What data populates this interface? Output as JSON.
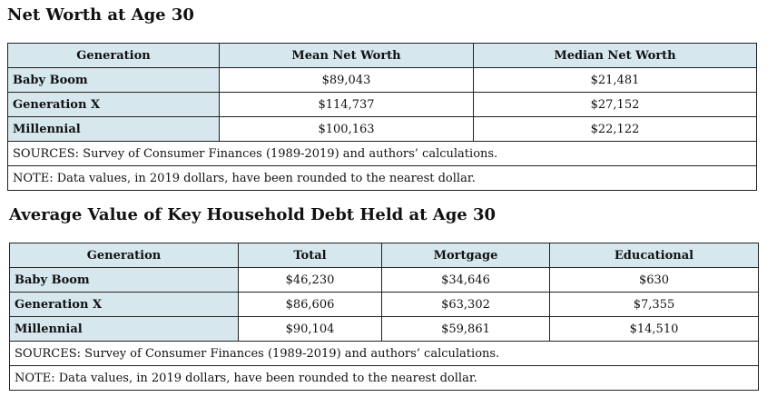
{
  "table1": {
    "title": "Net Worth at Age 30",
    "headers": [
      "Generation",
      "Mean Net Worth",
      "Median Net Worth"
    ],
    "rows": [
      [
        "Baby Boom",
        "$89,043",
        "$21,481"
      ],
      [
        "Generation X",
        "$114,737",
        "$27,152"
      ],
      [
        "Millennial",
        "$100,163",
        "$22,122"
      ]
    ],
    "sources": "SOURCES: Survey of Consumer Finances (1989-2019) and authors’ calculations.",
    "note": "NOTE: Data values, in 2019 dollars, have been rounded to the nearest dollar."
  },
  "table2": {
    "title": "Average Value of Key Household Debt Held at Age 30",
    "headers": [
      "Generation",
      "Total",
      "Mortgage",
      "Educational"
    ],
    "rows": [
      [
        "Baby Boom",
        "$46,230",
        "$34,646",
        "$630"
      ],
      [
        "Generation X",
        "$86,606",
        "$63,302",
        "$7,355"
      ],
      [
        "Millennial",
        "$90,104",
        "$59,861",
        "$14,510"
      ]
    ],
    "sources": "SOURCES: Survey of Consumer Finances (1989-2019) and authors’ calculations.",
    "note": "NOTE: Data values, in 2019 dollars, have been rounded to the nearest dollar."
  },
  "colors": {
    "header_fill": "#d6e7ee",
    "border": "#222222"
  }
}
